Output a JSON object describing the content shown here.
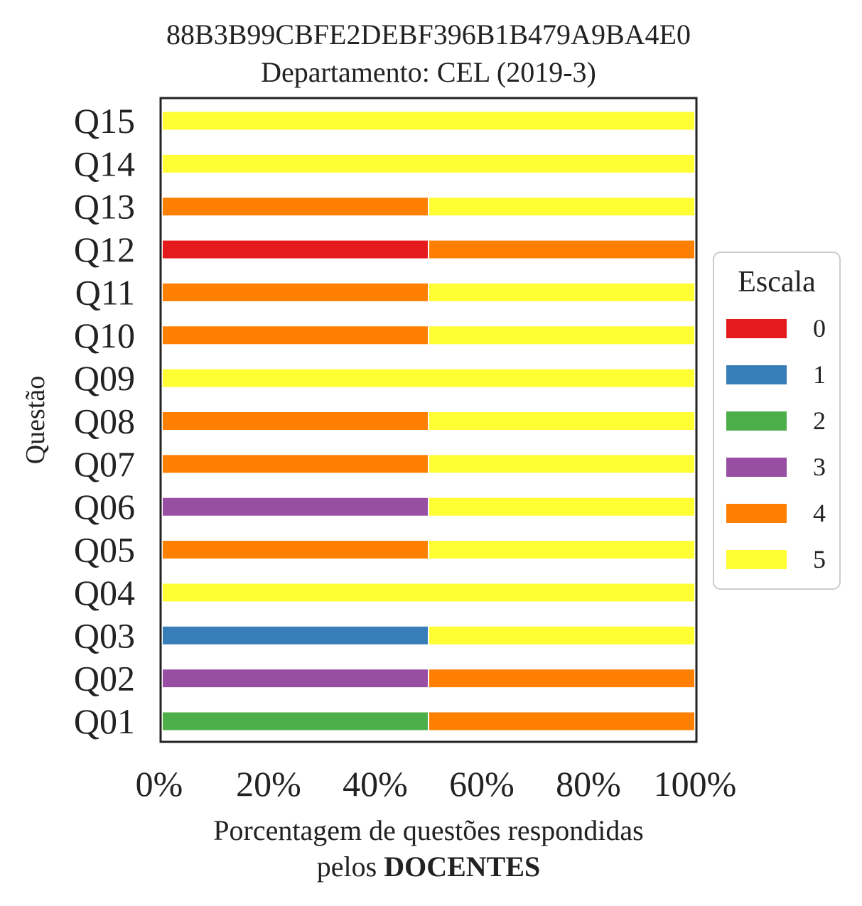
{
  "chart_data": {
    "type": "bar",
    "orientation": "horizontal",
    "stacked": true,
    "title": "88B3B99CBFE2DEBF396B1B479A9BA4E0",
    "subtitle": "Departamento: CEL (2019-3)",
    "xlabel_line1": "Porcentagem de questões respondidas",
    "xlabel_line2_prefix": "pelos ",
    "xlabel_line2_bold": "DOCENTES",
    "ylabel": "Questão",
    "xlim": [
      0,
      100
    ],
    "xticks": [
      "0%",
      "20%",
      "40%",
      "60%",
      "80%",
      "100%"
    ],
    "xtick_values": [
      0,
      20,
      40,
      60,
      80,
      100
    ],
    "categories": [
      "Q01",
      "Q02",
      "Q03",
      "Q04",
      "Q05",
      "Q06",
      "Q07",
      "Q08",
      "Q09",
      "Q10",
      "Q11",
      "Q12",
      "Q13",
      "Q14",
      "Q15"
    ],
    "series": [
      {
        "name": "0",
        "color": "#e41a1c",
        "values": [
          0,
          0,
          0,
          0,
          0,
          0,
          0,
          0,
          0,
          0,
          0,
          50,
          0,
          0,
          0
        ]
      },
      {
        "name": "1",
        "color": "#377eb8",
        "values": [
          0,
          0,
          50,
          0,
          0,
          0,
          0,
          0,
          0,
          0,
          0,
          0,
          0,
          0,
          0
        ]
      },
      {
        "name": "2",
        "color": "#4daf4a",
        "values": [
          50,
          0,
          0,
          0,
          0,
          0,
          0,
          0,
          0,
          0,
          0,
          0,
          0,
          0,
          0
        ]
      },
      {
        "name": "3",
        "color": "#984ea3",
        "values": [
          0,
          50,
          0,
          0,
          0,
          50,
          0,
          0,
          0,
          0,
          0,
          0,
          0,
          0,
          0
        ]
      },
      {
        "name": "4",
        "color": "#ff7f00",
        "values": [
          50,
          50,
          0,
          0,
          50,
          0,
          50,
          50,
          0,
          50,
          50,
          50,
          50,
          0,
          0
        ]
      },
      {
        "name": "5",
        "color": "#ffff33",
        "values": [
          0,
          0,
          50,
          100,
          50,
          50,
          50,
          50,
          100,
          50,
          50,
          0,
          50,
          100,
          100
        ]
      }
    ],
    "legend": {
      "title": "Escala",
      "placement": "right"
    },
    "grid": false
  }
}
